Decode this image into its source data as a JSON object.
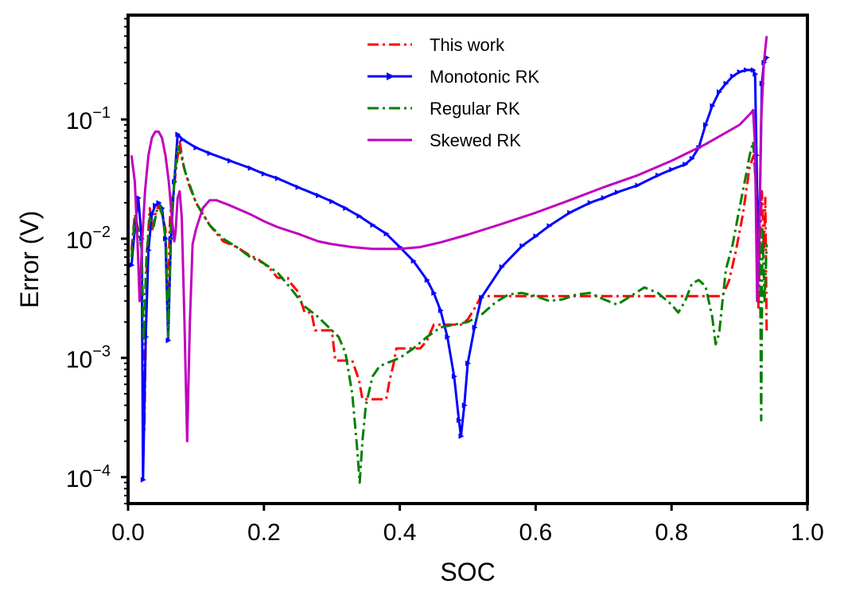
{
  "chart_data": {
    "type": "line",
    "xlabel": "SOC",
    "ylabel": "Error (V)",
    "xlim": [
      0.0,
      1.0
    ],
    "ylim": [
      6e-05,
      0.75
    ],
    "yscale": "log",
    "x_ticks": [
      "0.0",
      "0.2",
      "0.4",
      "0.6",
      "0.8",
      "1.0"
    ],
    "y_ticks": [
      {
        "base": "10",
        "exp": "−4"
      },
      {
        "base": "10",
        "exp": "−3"
      },
      {
        "base": "10",
        "exp": "−2"
      },
      {
        "base": "10",
        "exp": "−1"
      }
    ],
    "legend_position": "upper-center",
    "grid": false,
    "series": [
      {
        "name": "This work",
        "color": "#ff0000",
        "dash": "dashdot",
        "marker": "none",
        "points": [
          [
            0.005,
            0.008
          ],
          [
            0.01,
            0.016
          ],
          [
            0.015,
            0.012
          ],
          [
            0.02,
            0.009
          ],
          [
            0.024,
            0.00025
          ],
          [
            0.028,
            0.008
          ],
          [
            0.032,
            0.018
          ],
          [
            0.036,
            0.012
          ],
          [
            0.04,
            0.016
          ],
          [
            0.045,
            0.019
          ],
          [
            0.05,
            0.016
          ],
          [
            0.055,
            0.012
          ],
          [
            0.058,
            0.0025
          ],
          [
            0.062,
            0.016
          ],
          [
            0.067,
            0.025
          ],
          [
            0.072,
            0.045
          ],
          [
            0.076,
            0.065
          ],
          [
            0.082,
            0.04
          ],
          [
            0.09,
            0.028
          ],
          [
            0.1,
            0.02
          ],
          [
            0.12,
            0.013
          ],
          [
            0.14,
            0.0095
          ],
          [
            0.16,
            0.0085
          ],
          [
            0.18,
            0.0072
          ],
          [
            0.19,
            0.0068
          ],
          [
            0.2,
            0.0062
          ],
          [
            0.21,
            0.0055
          ],
          [
            0.22,
            0.0047
          ],
          [
            0.235,
            0.0047
          ],
          [
            0.24,
            0.0042
          ],
          [
            0.25,
            0.0036
          ],
          [
            0.26,
            0.0024
          ],
          [
            0.27,
            0.0024
          ],
          [
            0.275,
            0.0017
          ],
          [
            0.29,
            0.0017
          ],
          [
            0.3,
            0.0017
          ],
          [
            0.305,
            0.00095
          ],
          [
            0.32,
            0.00095
          ],
          [
            0.33,
            0.00095
          ],
          [
            0.34,
            0.00065
          ],
          [
            0.345,
            0.00045
          ],
          [
            0.355,
            0.00045
          ],
          [
            0.37,
            0.00045
          ],
          [
            0.38,
            0.00045
          ],
          [
            0.385,
            0.00065
          ],
          [
            0.39,
            0.00085
          ],
          [
            0.395,
            0.0012
          ],
          [
            0.41,
            0.0012
          ],
          [
            0.43,
            0.0012
          ],
          [
            0.44,
            0.0014
          ],
          [
            0.45,
            0.0019
          ],
          [
            0.47,
            0.0019
          ],
          [
            0.49,
            0.0019
          ],
          [
            0.5,
            0.0021
          ],
          [
            0.51,
            0.0026
          ],
          [
            0.52,
            0.0033
          ],
          [
            0.56,
            0.0033
          ],
          [
            0.6,
            0.0033
          ],
          [
            0.65,
            0.0033
          ],
          [
            0.7,
            0.0033
          ],
          [
            0.75,
            0.0033
          ],
          [
            0.8,
            0.0033
          ],
          [
            0.85,
            0.0033
          ],
          [
            0.875,
            0.0033
          ],
          [
            0.885,
            0.0045
          ],
          [
            0.895,
            0.008
          ],
          [
            0.905,
            0.016
          ],
          [
            0.915,
            0.04
          ],
          [
            0.921,
            0.05
          ],
          [
            0.925,
            0.025
          ],
          [
            0.928,
            0.0025
          ],
          [
            0.93,
            0.009
          ],
          [
            0.933,
            0.025
          ],
          [
            0.936,
            0.008
          ],
          [
            0.938,
            0.022
          ],
          [
            0.94,
            0.0016
          ]
        ]
      },
      {
        "name": "Monotonic RK",
        "color": "#0000ff",
        "dash": "solid",
        "marker": "triangle-right",
        "points": [
          [
            0.005,
            0.006
          ],
          [
            0.01,
            0.012
          ],
          [
            0.015,
            0.022
          ],
          [
            0.02,
            0.01
          ],
          [
            0.022,
            9.5e-05
          ],
          [
            0.026,
            0.0015
          ],
          [
            0.03,
            0.008
          ],
          [
            0.035,
            0.016
          ],
          [
            0.04,
            0.019
          ],
          [
            0.045,
            0.02
          ],
          [
            0.05,
            0.018
          ],
          [
            0.055,
            0.01
          ],
          [
            0.059,
            0.0014
          ],
          [
            0.063,
            0.01
          ],
          [
            0.068,
            0.03
          ],
          [
            0.073,
            0.075
          ],
          [
            0.08,
            0.068
          ],
          [
            0.1,
            0.058
          ],
          [
            0.12,
            0.052
          ],
          [
            0.15,
            0.045
          ],
          [
            0.18,
            0.039
          ],
          [
            0.2,
            0.035
          ],
          [
            0.22,
            0.032
          ],
          [
            0.25,
            0.027
          ],
          [
            0.28,
            0.023
          ],
          [
            0.3,
            0.0205
          ],
          [
            0.32,
            0.018
          ],
          [
            0.34,
            0.0155
          ],
          [
            0.36,
            0.013
          ],
          [
            0.38,
            0.011
          ],
          [
            0.4,
            0.0085
          ],
          [
            0.42,
            0.0065
          ],
          [
            0.44,
            0.0045
          ],
          [
            0.45,
            0.0035
          ],
          [
            0.46,
            0.0025
          ],
          [
            0.47,
            0.0015
          ],
          [
            0.48,
            0.0007
          ],
          [
            0.487,
            0.0003
          ],
          [
            0.49,
            0.00022
          ],
          [
            0.495,
            0.0004
          ],
          [
            0.5,
            0.0009
          ],
          [
            0.51,
            0.0018
          ],
          [
            0.52,
            0.0032
          ],
          [
            0.55,
            0.0058
          ],
          [
            0.58,
            0.0087
          ],
          [
            0.6,
            0.0105
          ],
          [
            0.62,
            0.0128
          ],
          [
            0.65,
            0.0165
          ],
          [
            0.68,
            0.02
          ],
          [
            0.7,
            0.022
          ],
          [
            0.72,
            0.0245
          ],
          [
            0.75,
            0.028
          ],
          [
            0.78,
            0.034
          ],
          [
            0.8,
            0.038
          ],
          [
            0.82,
            0.042
          ],
          [
            0.83,
            0.047
          ],
          [
            0.84,
            0.058
          ],
          [
            0.85,
            0.09
          ],
          [
            0.86,
            0.13
          ],
          [
            0.87,
            0.17
          ],
          [
            0.88,
            0.2
          ],
          [
            0.89,
            0.23
          ],
          [
            0.9,
            0.25
          ],
          [
            0.91,
            0.26
          ],
          [
            0.92,
            0.26
          ],
          [
            0.923,
            0.24
          ],
          [
            0.925,
            0.05
          ],
          [
            0.928,
            0.005
          ],
          [
            0.93,
            0.02
          ],
          [
            0.933,
            0.2
          ],
          [
            0.936,
            0.3
          ],
          [
            0.94,
            0.33
          ]
        ]
      },
      {
        "name": "Regular RK",
        "color": "#008000",
        "dash": "dashdot",
        "marker": "none",
        "points": [
          [
            0.005,
            0.007
          ],
          [
            0.01,
            0.015
          ],
          [
            0.015,
            0.012
          ],
          [
            0.02,
            0.008
          ],
          [
            0.023,
            0.0014
          ],
          [
            0.027,
            0.007
          ],
          [
            0.032,
            0.015
          ],
          [
            0.037,
            0.012
          ],
          [
            0.042,
            0.017
          ],
          [
            0.047,
            0.019
          ],
          [
            0.052,
            0.014
          ],
          [
            0.056,
            0.009
          ],
          [
            0.059,
            0.0015
          ],
          [
            0.063,
            0.012
          ],
          [
            0.068,
            0.03
          ],
          [
            0.073,
            0.06
          ],
          [
            0.078,
            0.05
          ],
          [
            0.085,
            0.035
          ],
          [
            0.1,
            0.02
          ],
          [
            0.12,
            0.013
          ],
          [
            0.14,
            0.01
          ],
          [
            0.16,
            0.0085
          ],
          [
            0.18,
            0.007
          ],
          [
            0.2,
            0.0062
          ],
          [
            0.22,
            0.0052
          ],
          [
            0.24,
            0.0038
          ],
          [
            0.26,
            0.0027
          ],
          [
            0.28,
            0.0022
          ],
          [
            0.3,
            0.0017
          ],
          [
            0.31,
            0.0015
          ],
          [
            0.32,
            0.0011
          ],
          [
            0.33,
            0.0005
          ],
          [
            0.337,
            0.00018
          ],
          [
            0.341,
            9e-05
          ],
          [
            0.345,
            0.0002
          ],
          [
            0.35,
            0.0004
          ],
          [
            0.36,
            0.0007
          ],
          [
            0.37,
            0.00085
          ],
          [
            0.38,
            0.0009
          ],
          [
            0.4,
            0.001
          ],
          [
            0.42,
            0.0012
          ],
          [
            0.44,
            0.0015
          ],
          [
            0.46,
            0.0018
          ],
          [
            0.48,
            0.0019
          ],
          [
            0.5,
            0.002
          ],
          [
            0.52,
            0.0023
          ],
          [
            0.54,
            0.0029
          ],
          [
            0.56,
            0.0034
          ],
          [
            0.58,
            0.0035
          ],
          [
            0.6,
            0.0033
          ],
          [
            0.62,
            0.003
          ],
          [
            0.64,
            0.0031
          ],
          [
            0.66,
            0.0034
          ],
          [
            0.68,
            0.0035
          ],
          [
            0.7,
            0.0031
          ],
          [
            0.72,
            0.0028
          ],
          [
            0.74,
            0.0033
          ],
          [
            0.76,
            0.0039
          ],
          [
            0.78,
            0.0035
          ],
          [
            0.8,
            0.0028
          ],
          [
            0.81,
            0.0024
          ],
          [
            0.82,
            0.003
          ],
          [
            0.83,
            0.0042
          ],
          [
            0.84,
            0.0045
          ],
          [
            0.85,
            0.004
          ],
          [
            0.86,
            0.0022
          ],
          [
            0.865,
            0.0013
          ],
          [
            0.87,
            0.0016
          ],
          [
            0.875,
            0.003
          ],
          [
            0.88,
            0.0055
          ],
          [
            0.89,
            0.009
          ],
          [
            0.9,
            0.018
          ],
          [
            0.91,
            0.035
          ],
          [
            0.915,
            0.05
          ],
          [
            0.92,
            0.065
          ],
          [
            0.924,
            0.03
          ],
          [
            0.927,
            0.004
          ],
          [
            0.93,
            0.012
          ],
          [
            0.932,
            0.0003
          ],
          [
            0.934,
            0.012
          ],
          [
            0.937,
            0.003
          ],
          [
            0.94,
            0.009
          ]
        ]
      },
      {
        "name": "Skewed RK",
        "color": "#bf00bf",
        "dash": "solid",
        "marker": "none",
        "points": [
          [
            0.005,
            0.05
          ],
          [
            0.01,
            0.03
          ],
          [
            0.014,
            0.009
          ],
          [
            0.017,
            0.003
          ],
          [
            0.02,
            0.008
          ],
          [
            0.025,
            0.025
          ],
          [
            0.03,
            0.05
          ],
          [
            0.035,
            0.07
          ],
          [
            0.04,
            0.079
          ],
          [
            0.045,
            0.079
          ],
          [
            0.05,
            0.07
          ],
          [
            0.055,
            0.05
          ],
          [
            0.06,
            0.03
          ],
          [
            0.065,
            0.014
          ],
          [
            0.068,
            0.0095
          ],
          [
            0.07,
            0.0115
          ],
          [
            0.073,
            0.022
          ],
          [
            0.076,
            0.025
          ],
          [
            0.079,
            0.015
          ],
          [
            0.083,
            0.002
          ],
          [
            0.087,
            0.0002
          ],
          [
            0.091,
            0.002
          ],
          [
            0.095,
            0.009
          ],
          [
            0.1,
            0.012
          ],
          [
            0.11,
            0.018
          ],
          [
            0.12,
            0.021
          ],
          [
            0.13,
            0.021
          ],
          [
            0.15,
            0.019
          ],
          [
            0.18,
            0.016
          ],
          [
            0.2,
            0.014
          ],
          [
            0.22,
            0.0125
          ],
          [
            0.25,
            0.011
          ],
          [
            0.28,
            0.0095
          ],
          [
            0.3,
            0.009
          ],
          [
            0.33,
            0.0085
          ],
          [
            0.36,
            0.0082
          ],
          [
            0.4,
            0.0082
          ],
          [
            0.43,
            0.0085
          ],
          [
            0.46,
            0.0093
          ],
          [
            0.5,
            0.0108
          ],
          [
            0.55,
            0.0133
          ],
          [
            0.6,
            0.0165
          ],
          [
            0.65,
            0.021
          ],
          [
            0.7,
            0.027
          ],
          [
            0.75,
            0.034
          ],
          [
            0.8,
            0.045
          ],
          [
            0.85,
            0.062
          ],
          [
            0.9,
            0.09
          ],
          [
            0.918,
            0.115
          ],
          [
            0.92,
            0.12
          ],
          [
            0.923,
            0.06
          ],
          [
            0.926,
            0.003
          ],
          [
            0.929,
            0.01
          ],
          [
            0.932,
            0.1
          ],
          [
            0.936,
            0.3
          ],
          [
            0.94,
            0.5
          ]
        ]
      }
    ]
  }
}
